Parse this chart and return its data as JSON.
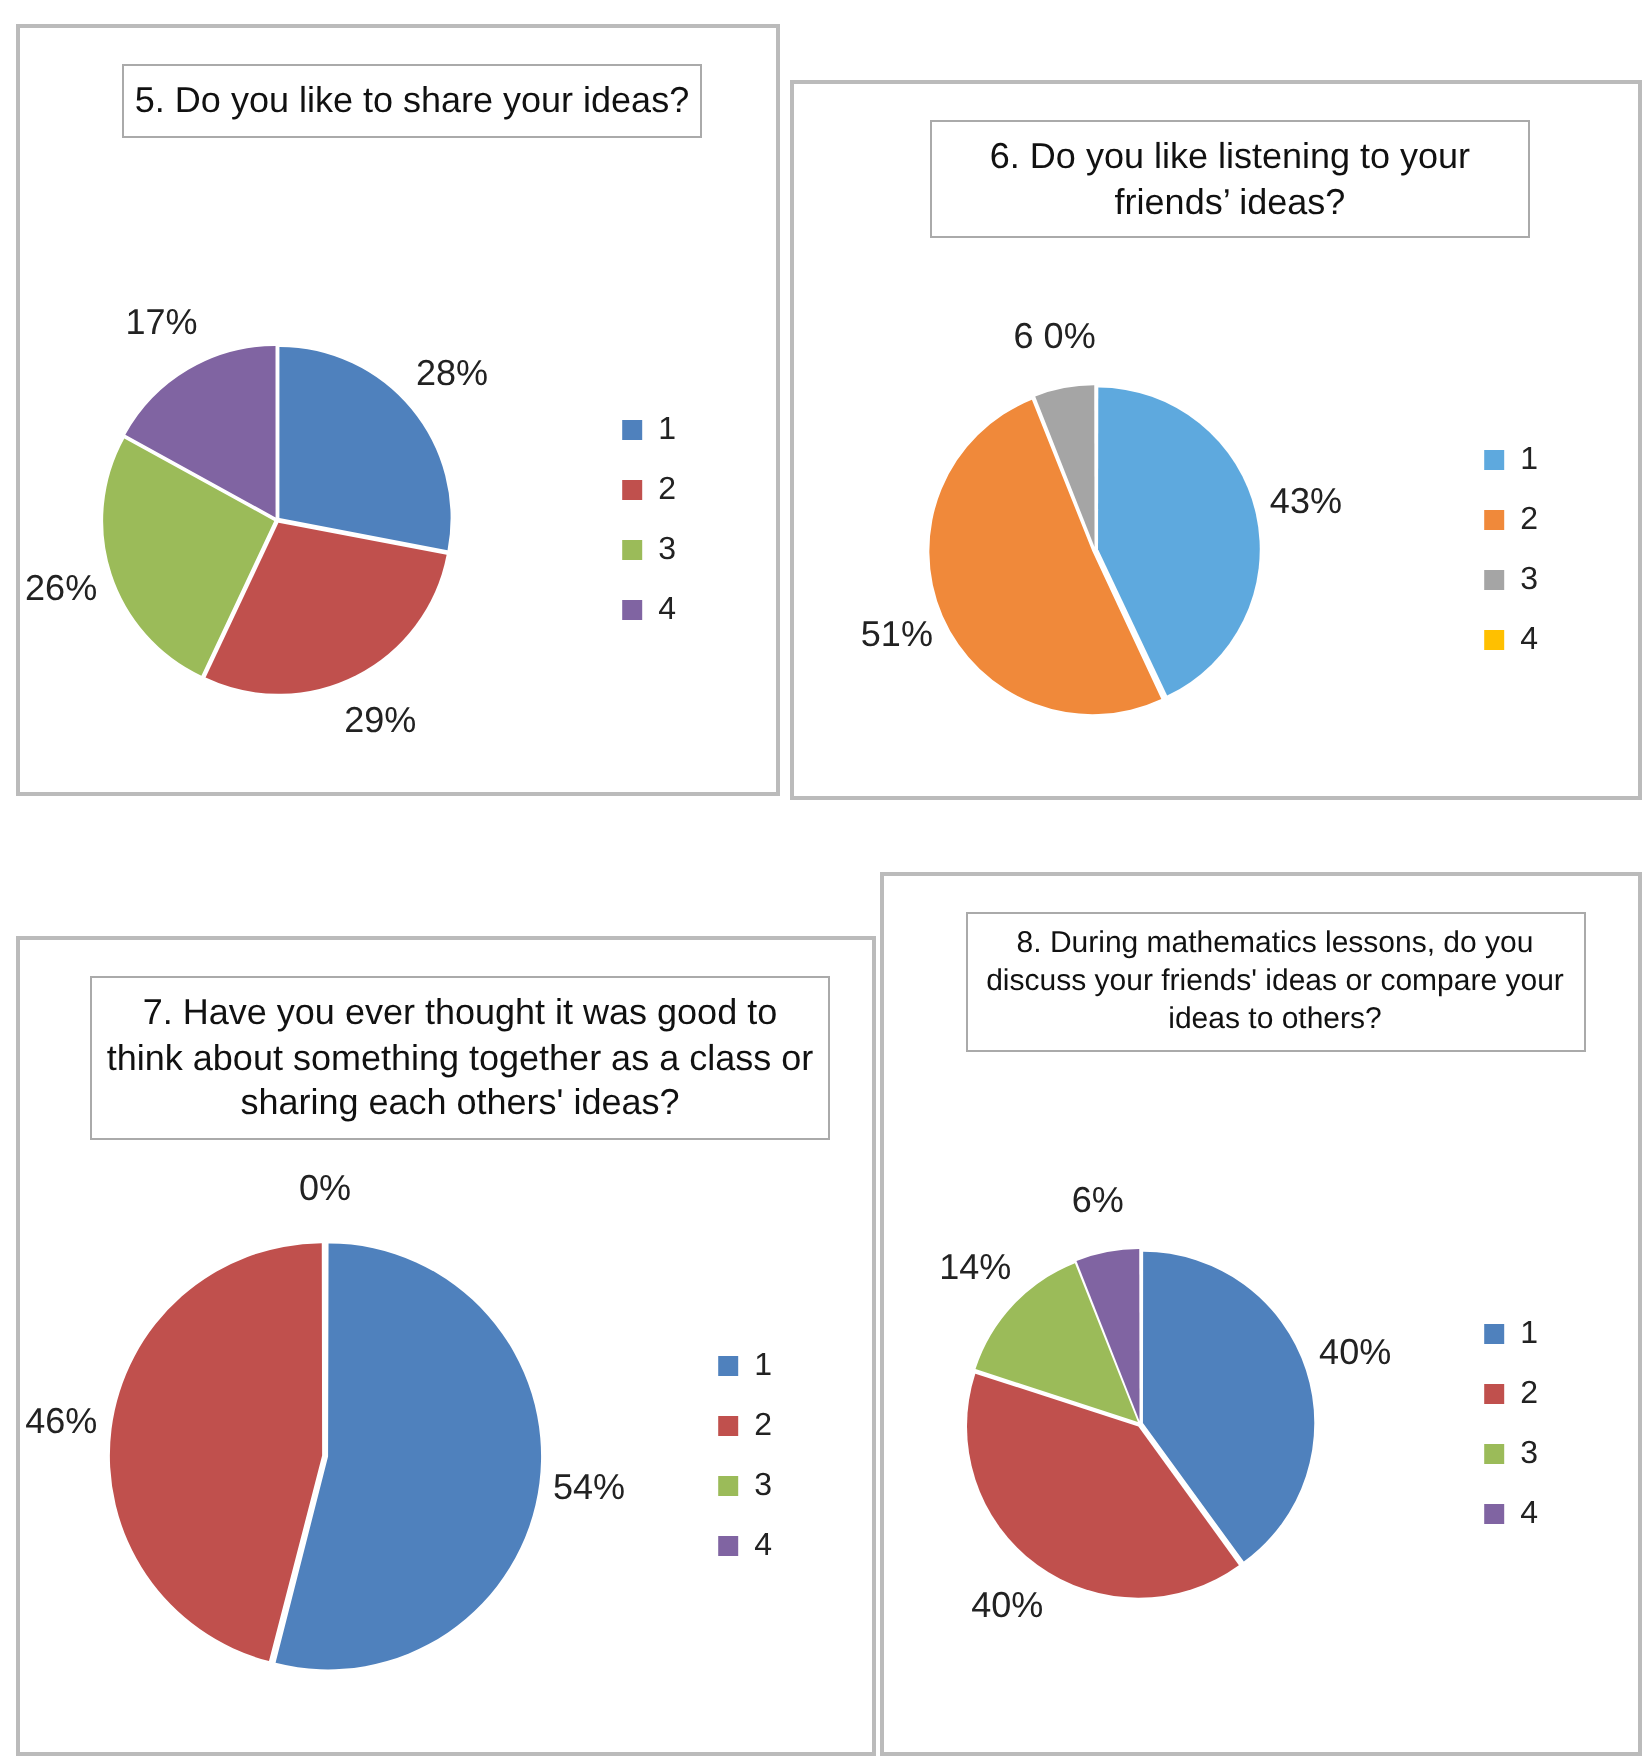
{
  "chart_data": [
    {
      "type": "pie",
      "title": "5. Do you like to share your ideas?",
      "categories": [
        "1",
        "2",
        "3",
        "4"
      ],
      "values": [
        28,
        29,
        26,
        17
      ],
      "colors": [
        "#4f81bd",
        "#c0504d",
        "#9bbb59",
        "#8064a2"
      ],
      "value_labels": [
        "28%",
        "29%",
        "26%",
        "17%"
      ],
      "legend": "right"
    },
    {
      "type": "pie",
      "title": "6. Do you like listening to your friends’ ideas?",
      "categories": [
        "1",
        "2",
        "3",
        "4"
      ],
      "values": [
        43,
        51,
        6,
        0
      ],
      "colors": [
        "#5ea9de",
        "#f0893a",
        "#a5a5a5",
        "#ffc000"
      ],
      "value_labels": [
        "43%",
        "51%",
        "6 0%",
        null
      ],
      "legend": "right"
    },
    {
      "type": "pie",
      "title": "7. Have you ever thought it was good to think about something together as a class or sharing each others' ideas?",
      "categories": [
        "1",
        "2",
        "3",
        "4"
      ],
      "values": [
        54,
        46,
        0,
        0
      ],
      "colors": [
        "#4f81bd",
        "#c0504d",
        "#9bbb59",
        "#8064a2"
      ],
      "value_labels": [
        "54%",
        "46%",
        "0%",
        null
      ],
      "legend": "right"
    },
    {
      "type": "pie",
      "title": "8. During mathematics lessons, do you discuss your friends' ideas or compare your ideas to others?",
      "categories": [
        "1",
        "2",
        "3",
        "4"
      ],
      "values": [
        40,
        40,
        14,
        6
      ],
      "colors": [
        "#4f81bd",
        "#c0504d",
        "#9bbb59",
        "#8064a2"
      ],
      "value_labels": [
        "40%",
        "40%",
        "14%",
        "6%"
      ],
      "legend": "right"
    }
  ]
}
